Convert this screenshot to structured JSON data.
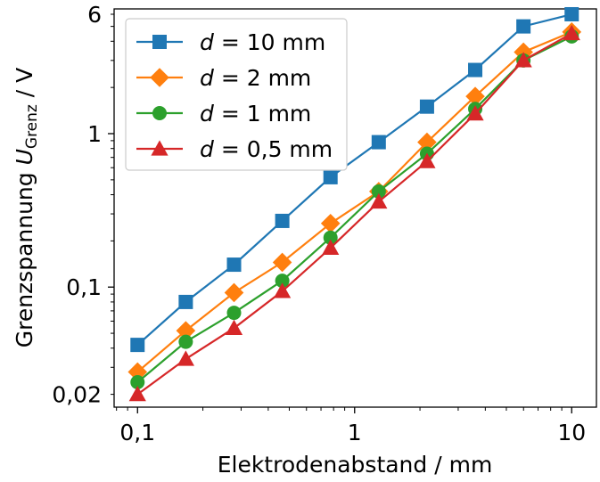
{
  "chart_data": {
    "type": "line",
    "title": "",
    "xlabel": "Elektrodenabstand / mm",
    "ylabel_prefix": "Grenzspannung ",
    "ylabel_symbol": "U",
    "ylabel_subscript": "Grenz",
    "ylabel_suffix": " / V",
    "xscale": "log",
    "yscale": "log",
    "xlim": [
      0.078,
      13
    ],
    "ylim": [
      0.0165,
      6.5
    ],
    "xticks": [
      {
        "value": 0.1,
        "label": "0,1"
      },
      {
        "value": 1,
        "label": "1"
      },
      {
        "value": 10,
        "label": "10"
      }
    ],
    "yticks": [
      {
        "value": 0.02,
        "label": "0,02"
      },
      {
        "value": 0.1,
        "label": "0,1"
      },
      {
        "value": 1,
        "label": "1"
      },
      {
        "value": 6,
        "label": "6"
      }
    ],
    "grid": false,
    "legend_position": "top-left",
    "x": [
      0.1,
      0.1668,
      0.2783,
      0.4642,
      0.7743,
      1.2915,
      2.1544,
      3.5938,
      5.9948,
      10.0
    ],
    "series": [
      {
        "name": "d = 10 mm",
        "label_var": "d",
        "label_rest": " = 10 mm",
        "color": "#1f77b4",
        "marker": "square",
        "values": [
          0.042,
          0.08,
          0.14,
          0.27,
          0.52,
          0.88,
          1.5,
          2.6,
          5.0,
          6.0
        ]
      },
      {
        "name": "d = 2 mm",
        "label_var": "d",
        "label_rest": " = 2 mm",
        "color": "#ff7f0e",
        "marker": "diamond",
        "values": [
          0.028,
          0.052,
          0.092,
          0.145,
          0.26,
          0.42,
          0.88,
          1.75,
          3.4,
          4.6
        ]
      },
      {
        "name": "d = 1 mm",
        "label_var": "d",
        "label_rest": " = 1 mm",
        "color": "#2ca02c",
        "marker": "circle",
        "values": [
          0.024,
          0.044,
          0.068,
          0.11,
          0.21,
          0.42,
          0.74,
          1.45,
          3.0,
          4.3
        ]
      },
      {
        "name": "d = 0,5 mm",
        "label_var": "d",
        "label_rest": " = 0,5 mm",
        "color": "#d62728",
        "marker": "triangle",
        "values": [
          0.02,
          0.034,
          0.054,
          0.094,
          0.18,
          0.36,
          0.66,
          1.35,
          3.0,
          4.5
        ]
      }
    ]
  }
}
